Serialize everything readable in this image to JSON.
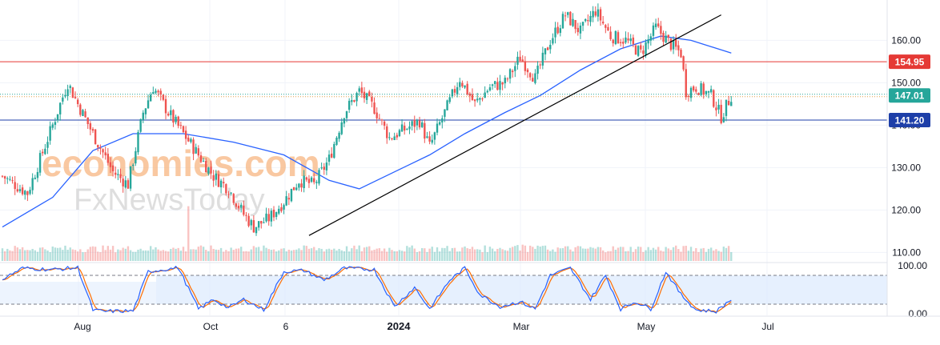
{
  "colors": {
    "up": "#26a69a",
    "down": "#ef5350",
    "ma_line": "#2962ff",
    "trend_line": "#000000",
    "resistance": "#e53935",
    "support": "#1e3fa8",
    "stoch_k": "#2962ff",
    "stoch_d": "#ff6d00",
    "stoch_band": "#dbeafe",
    "grid": "#f0f3fa",
    "axis_text": "#131722",
    "current_label": "#26a69a",
    "watermark_orange": "#f7b27a",
    "watermark_gray": "#c9c9c9"
  },
  "watermark": {
    "line1": "economies.com",
    "line2": "FxNewsToday"
  },
  "chart_data": {
    "type": "candlestick",
    "title": "",
    "price_axis": {
      "ylim": [
        108,
        168
      ],
      "ticks": [
        "110.00",
        "120.00",
        "130.00",
        "140.00",
        "150.00",
        "160.00"
      ],
      "tick_values": [
        110,
        120,
        130,
        140,
        150,
        160
      ]
    },
    "time_axis": {
      "ticks": [
        "Aug",
        "Oct",
        "6",
        "2024",
        "Mar",
        "May",
        "Jul"
      ],
      "bold_tick": "2024"
    },
    "levels": [
      {
        "name": "resistance",
        "value": 154.95,
        "label": "154.95"
      },
      {
        "name": "current",
        "value": 147.01,
        "label": "147.01"
      },
      {
        "name": "support",
        "value": 141.2,
        "label": "141.20"
      }
    ],
    "price_anchors": [
      {
        "bar": 0,
        "price": 128
      },
      {
        "bar": 10,
        "price": 124
      },
      {
        "bar": 20,
        "price": 140
      },
      {
        "bar": 26,
        "price": 150
      },
      {
        "bar": 30,
        "price": 145
      },
      {
        "bar": 36,
        "price": 138
      },
      {
        "bar": 44,
        "price": 129
      },
      {
        "bar": 50,
        "price": 126
      },
      {
        "bar": 56,
        "price": 143
      },
      {
        "bar": 60,
        "price": 149
      },
      {
        "bar": 66,
        "price": 143
      },
      {
        "bar": 72,
        "price": 138
      },
      {
        "bar": 78,
        "price": 133
      },
      {
        "bar": 84,
        "price": 128
      },
      {
        "bar": 90,
        "price": 125
      },
      {
        "bar": 96,
        "price": 119
      },
      {
        "bar": 100,
        "price": 116
      },
      {
        "bar": 106,
        "price": 118
      },
      {
        "bar": 112,
        "price": 122
      },
      {
        "bar": 118,
        "price": 127
      },
      {
        "bar": 124,
        "price": 126
      },
      {
        "bar": 130,
        "price": 132
      },
      {
        "bar": 136,
        "price": 143
      },
      {
        "bar": 142,
        "price": 148
      },
      {
        "bar": 148,
        "price": 144
      },
      {
        "bar": 154,
        "price": 137
      },
      {
        "bar": 160,
        "price": 139
      },
      {
        "bar": 166,
        "price": 141
      },
      {
        "bar": 170,
        "price": 135
      },
      {
        "bar": 176,
        "price": 143
      },
      {
        "bar": 182,
        "price": 151
      },
      {
        "bar": 188,
        "price": 145
      },
      {
        "bar": 194,
        "price": 149
      },
      {
        "bar": 200,
        "price": 150
      },
      {
        "bar": 206,
        "price": 156
      },
      {
        "bar": 212,
        "price": 151
      },
      {
        "bar": 218,
        "price": 160
      },
      {
        "bar": 224,
        "price": 166
      },
      {
        "bar": 230,
        "price": 162
      },
      {
        "bar": 236,
        "price": 167
      },
      {
        "bar": 242,
        "price": 161
      },
      {
        "bar": 248,
        "price": 160
      },
      {
        "bar": 254,
        "price": 157
      },
      {
        "bar": 260,
        "price": 163
      },
      {
        "bar": 266,
        "price": 159
      },
      {
        "bar": 270,
        "price": 157
      },
      {
        "bar": 272,
        "price": 148
      },
      {
        "bar": 276,
        "price": 149
      },
      {
        "bar": 282,
        "price": 147
      },
      {
        "bar": 286,
        "price": 142
      },
      {
        "bar": 290,
        "price": 147
      }
    ],
    "ma_points": [
      {
        "bar": 0,
        "price": 116
      },
      {
        "bar": 20,
        "price": 123
      },
      {
        "bar": 36,
        "price": 134
      },
      {
        "bar": 52,
        "price": 138
      },
      {
        "bar": 72,
        "price": 138
      },
      {
        "bar": 92,
        "price": 136
      },
      {
        "bar": 112,
        "price": 133
      },
      {
        "bar": 130,
        "price": 127
      },
      {
        "bar": 142,
        "price": 125
      },
      {
        "bar": 156,
        "price": 129
      },
      {
        "bar": 170,
        "price": 133
      },
      {
        "bar": 184,
        "price": 138
      },
      {
        "bar": 200,
        "price": 143
      },
      {
        "bar": 214,
        "price": 147
      },
      {
        "bar": 230,
        "price": 153
      },
      {
        "bar": 246,
        "price": 158
      },
      {
        "bar": 262,
        "price": 161
      },
      {
        "bar": 274,
        "price": 160
      },
      {
        "bar": 290,
        "price": 157
      }
    ],
    "trendline": {
      "from": {
        "bar": 122,
        "price": 114
      },
      "to": {
        "bar": 286,
        "price": 166
      }
    },
    "stochastic": {
      "ylim": [
        0,
        100
      ],
      "ticks": [
        "100.00",
        "0.00"
      ],
      "tick_values": [
        100,
        0
      ],
      "band": [
        20,
        80
      ],
      "k_anchors": [
        {
          "bar": 0,
          "value": 72
        },
        {
          "bar": 8,
          "value": 95
        },
        {
          "bar": 20,
          "value": 92
        },
        {
          "bar": 30,
          "value": 96
        },
        {
          "bar": 36,
          "value": 8
        },
        {
          "bar": 40,
          "value": 5
        },
        {
          "bar": 52,
          "value": 6
        },
        {
          "bar": 58,
          "value": 88
        },
        {
          "bar": 70,
          "value": 96
        },
        {
          "bar": 78,
          "value": 10
        },
        {
          "bar": 84,
          "value": 30
        },
        {
          "bar": 90,
          "value": 12
        },
        {
          "bar": 96,
          "value": 30
        },
        {
          "bar": 104,
          "value": 8
        },
        {
          "bar": 112,
          "value": 88
        },
        {
          "bar": 120,
          "value": 90
        },
        {
          "bar": 128,
          "value": 70
        },
        {
          "bar": 136,
          "value": 95
        },
        {
          "bar": 148,
          "value": 92
        },
        {
          "bar": 156,
          "value": 15
        },
        {
          "bar": 164,
          "value": 55
        },
        {
          "bar": 170,
          "value": 10
        },
        {
          "bar": 178,
          "value": 70
        },
        {
          "bar": 184,
          "value": 95
        },
        {
          "bar": 190,
          "value": 40
        },
        {
          "bar": 198,
          "value": 15
        },
        {
          "bar": 206,
          "value": 25
        },
        {
          "bar": 212,
          "value": 10
        },
        {
          "bar": 218,
          "value": 80
        },
        {
          "bar": 226,
          "value": 95
        },
        {
          "bar": 234,
          "value": 30
        },
        {
          "bar": 240,
          "value": 80
        },
        {
          "bar": 246,
          "value": 10
        },
        {
          "bar": 252,
          "value": 25
        },
        {
          "bar": 258,
          "value": 10
        },
        {
          "bar": 264,
          "value": 88
        },
        {
          "bar": 270,
          "value": 40
        },
        {
          "bar": 276,
          "value": 8
        },
        {
          "bar": 284,
          "value": 5
        },
        {
          "bar": 290,
          "value": 30
        }
      ]
    },
    "volume": {
      "spike_bar": 74,
      "spike_level": 0.95,
      "base_level": 0.15
    },
    "bars_total": 291,
    "future_bars": 62
  }
}
